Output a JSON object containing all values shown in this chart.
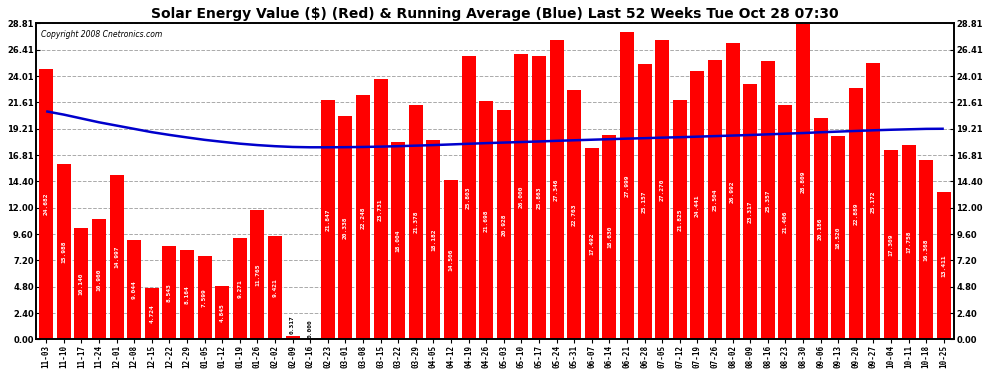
{
  "title": "Solar Energy Value ($) (Red) & Running Average (Blue) Last 52 Weeks Tue Oct 28 07:30",
  "copyright": "Copyright 2008 Cnetronics.com",
  "bar_color": "#ff0000",
  "line_color": "#0000cc",
  "bg_color": "#ffffff",
  "grid_color": "#aaaaaa",
  "yticks": [
    0.0,
    2.4,
    4.8,
    7.2,
    9.6,
    12.0,
    14.4,
    16.81,
    19.21,
    21.61,
    24.01,
    26.41,
    28.81
  ],
  "ylim": [
    0.0,
    28.81
  ],
  "labels": [
    "11-03",
    "11-10",
    "11-17",
    "11-24",
    "12-01",
    "12-08",
    "12-15",
    "12-22",
    "12-29",
    "01-05",
    "01-12",
    "01-19",
    "01-26",
    "02-02",
    "02-09",
    "02-16",
    "02-23",
    "03-01",
    "03-08",
    "03-15",
    "03-22",
    "03-29",
    "04-05",
    "04-12",
    "04-19",
    "04-26",
    "05-03",
    "05-10",
    "05-17",
    "05-24",
    "05-31",
    "06-07",
    "06-14",
    "06-21",
    "06-28",
    "07-05",
    "07-12",
    "07-19",
    "07-26",
    "08-02",
    "08-09",
    "08-16",
    "08-23",
    "08-30",
    "09-06",
    "09-13",
    "09-20",
    "09-27",
    "10-04",
    "10-11",
    "10-18",
    "10-25"
  ],
  "values": [
    24.682,
    15.988,
    10.14,
    10.96,
    14.997,
    9.044,
    4.724,
    8.543,
    8.164,
    7.599,
    4.845,
    9.271,
    11.765,
    9.421,
    0.317,
    0.0,
    21.847,
    20.338,
    22.248,
    23.731,
    18.004,
    21.378,
    18.182,
    14.506,
    25.803,
    21.698,
    20.928,
    26.0,
    25.863,
    27.346,
    22.763,
    17.492,
    18.63,
    27.999,
    25.157,
    27.27,
    21.825,
    24.441,
    25.504,
    26.992,
    23.317,
    25.357,
    21.406,
    28.809,
    20.186,
    18.52,
    22.889,
    25.172,
    17.309,
    17.758,
    16.368,
    13.411
  ],
  "running_avg": [
    20.8,
    20.5,
    20.15,
    19.8,
    19.5,
    19.2,
    18.9,
    18.65,
    18.42,
    18.2,
    18.02,
    17.85,
    17.72,
    17.62,
    17.55,
    17.52,
    17.52,
    17.53,
    17.55,
    17.58,
    17.62,
    17.67,
    17.72,
    17.78,
    17.84,
    17.9,
    17.95,
    18.0,
    18.05,
    18.11,
    18.16,
    18.21,
    18.26,
    18.31,
    18.35,
    18.4,
    18.44,
    18.49,
    18.54,
    18.59,
    18.64,
    18.7,
    18.76,
    18.82,
    18.89,
    18.95,
    19.01,
    19.07,
    19.12,
    19.16,
    19.2,
    19.21
  ],
  "title_fontsize": 10,
  "tick_fontsize": 6,
  "label_fontsize": 4.5,
  "bar_label_color_inside": "#ffffff",
  "bar_label_color_outside": "#000000"
}
